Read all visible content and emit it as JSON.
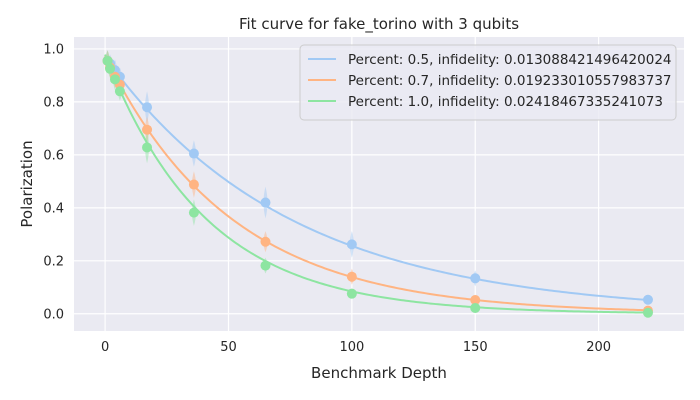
{
  "chart_data": {
    "type": "scatter",
    "title": "Fit curve for fake_torino with 3 qubits",
    "xlabel": "Benchmark Depth",
    "ylabel": "Polarization",
    "xlim": [
      -12.6,
      234.6
    ],
    "ylim": [
      -0.065,
      1.045
    ],
    "xticks": [
      0,
      50,
      100,
      150,
      200
    ],
    "yticks": [
      0.0,
      0.2,
      0.4,
      0.6,
      0.8,
      1.0
    ],
    "grid": true,
    "legend_position": "top-right",
    "x": [
      1,
      2,
      4,
      6,
      17,
      36,
      65,
      100,
      150,
      220
    ],
    "series": [
      {
        "name": "Percent: 0.5, infidelity: 0.013088421496420024",
        "color": "#a1c9f4",
        "values": [
          0.955,
          0.945,
          0.92,
          0.895,
          0.78,
          0.605,
          0.42,
          0.262,
          0.134,
          0.053
        ],
        "spread": [
          0.04,
          0.035,
          0.04,
          0.035,
          0.06,
          0.05,
          0.06,
          0.05,
          0.03,
          0.02
        ],
        "fit_decay": 0.9868
      },
      {
        "name": "Percent: 0.7, infidelity: 0.019233010557983737",
        "color": "#ffb482",
        "values": [
          0.955,
          0.93,
          0.895,
          0.865,
          0.695,
          0.488,
          0.272,
          0.14,
          0.052,
          0.012
        ],
        "spread": [
          0.04,
          0.035,
          0.04,
          0.035,
          0.05,
          0.05,
          0.04,
          0.03,
          0.02,
          0.01
        ],
        "fit_decay": 0.9807
      },
      {
        "name": "Percent: 1.0, infidelity: 0.02418467335241073",
        "color": "#8de5a1",
        "values": [
          0.955,
          0.925,
          0.885,
          0.84,
          0.628,
          0.382,
          0.182,
          0.076,
          0.022,
          0.004
        ],
        "spread": [
          0.04,
          0.035,
          0.04,
          0.035,
          0.06,
          0.05,
          0.03,
          0.02,
          0.01,
          0.005
        ],
        "fit_decay": 0.9758
      }
    ]
  }
}
